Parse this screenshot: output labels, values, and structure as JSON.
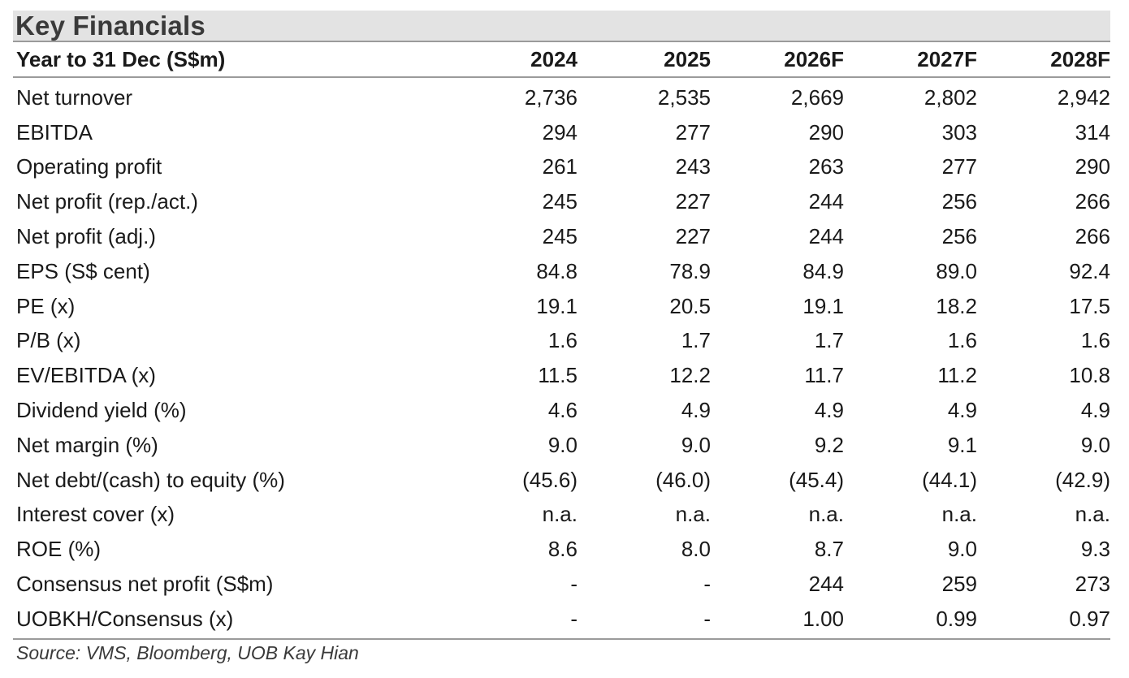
{
  "title": "Key Financials",
  "header": {
    "label": "Year to 31 Dec (S$m)",
    "years": [
      "2024",
      "2025",
      "2026F",
      "2027F",
      "2028F"
    ]
  },
  "rows": [
    {
      "label": "Net turnover",
      "values": [
        "2,736",
        "2,535",
        "2,669",
        "2,802",
        "2,942"
      ]
    },
    {
      "label": "EBITDA",
      "values": [
        "294",
        "277",
        "290",
        "303",
        "314"
      ]
    },
    {
      "label": "Operating profit",
      "values": [
        "261",
        "243",
        "263",
        "277",
        "290"
      ]
    },
    {
      "label": "Net profit (rep./act.)",
      "values": [
        "245",
        "227",
        "244",
        "256",
        "266"
      ]
    },
    {
      "label": "Net profit (adj.)",
      "values": [
        "245",
        "227",
        "244",
        "256",
        "266"
      ]
    },
    {
      "label": "EPS  (S$ cent)",
      "values": [
        "84.8",
        "78.9",
        "84.9",
        "89.0",
        "92.4"
      ]
    },
    {
      "label": "PE (x)",
      "values": [
        "19.1",
        "20.5",
        "19.1",
        "18.2",
        "17.5"
      ]
    },
    {
      "label": "P/B (x)",
      "values": [
        "1.6",
        "1.7",
        "1.7",
        "1.6",
        "1.6"
      ]
    },
    {
      "label": "EV/EBITDA (x)",
      "values": [
        "11.5",
        "12.2",
        "11.7",
        "11.2",
        "10.8"
      ]
    },
    {
      "label": "Dividend yield (%)",
      "values": [
        "4.6",
        "4.9",
        "4.9",
        "4.9",
        "4.9"
      ]
    },
    {
      "label": "Net margin (%)",
      "values": [
        "9.0",
        "9.0",
        "9.2",
        "9.1",
        "9.0"
      ]
    },
    {
      "label": "Net debt/(cash) to equity (%)",
      "values": [
        "(45.6)",
        "(46.0)",
        "(45.4)",
        "(44.1)",
        "(42.9)"
      ]
    },
    {
      "label": "Interest cover (x)",
      "values": [
        "n.a.",
        "n.a.",
        "n.a.",
        "n.a.",
        "n.a."
      ]
    },
    {
      "label": "ROE (%)",
      "values": [
        "8.6",
        "8.0",
        "8.7",
        "9.0",
        "9.3"
      ]
    },
    {
      "label": "Consensus net profit  (S$m)",
      "values": [
        "-",
        "-",
        "244",
        "259",
        "273"
      ]
    },
    {
      "label": "UOBKH/Consensus (x)",
      "values": [
        "-",
        "-",
        "1.00",
        "0.99",
        "0.97"
      ]
    }
  ],
  "source": "Source: VMS, Bloomberg, UOB Kay Hian"
}
